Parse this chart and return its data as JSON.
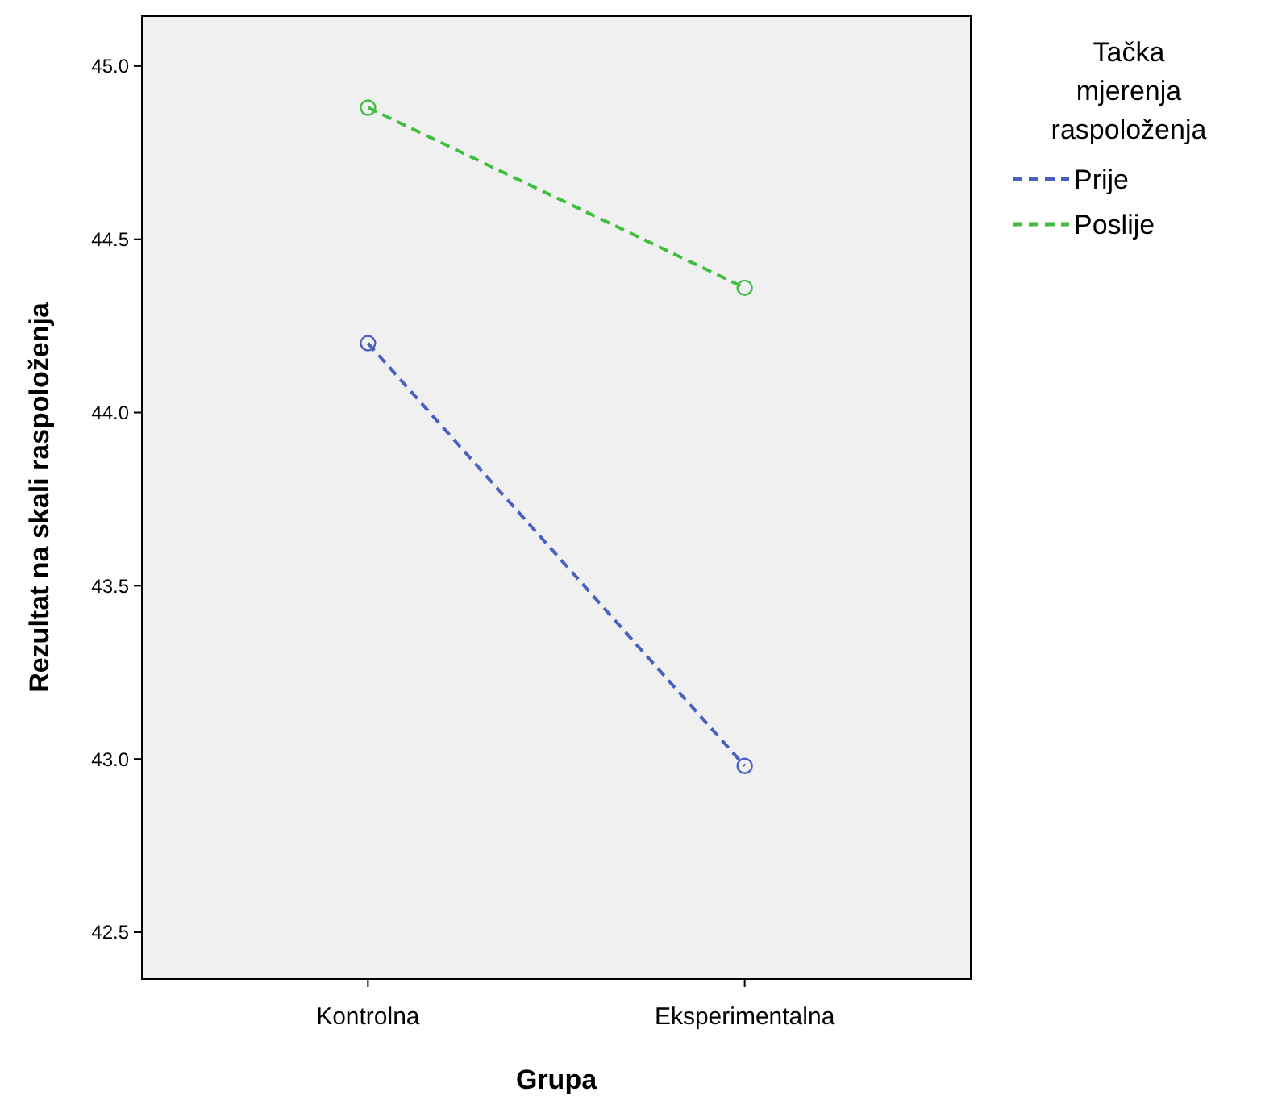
{
  "chart_data": {
    "type": "line",
    "xlabel": "Grupa",
    "ylabel": "Rezultat na skali raspoloženja",
    "legend_title": "Tačka mjerenja raspoloženja",
    "categories": [
      "Kontrolna",
      "Eksperimentalna"
    ],
    "series": [
      {
        "name": "Prije",
        "color": "#4a5fc1",
        "values": [
          44.2,
          42.98
        ]
      },
      {
        "name": "Poslije",
        "color": "#3fbf3f",
        "values": [
          44.88,
          44.36
        ]
      }
    ],
    "ylim": [
      42.365,
      45.144
    ],
    "yticks": [
      {
        "value": 42.5,
        "label": "42.5"
      },
      {
        "value": 43,
        "label": "43.0"
      },
      {
        "value": 43.5,
        "label": "43.5"
      },
      {
        "value": 44,
        "label": "44.0"
      },
      {
        "value": 44.5,
        "label": "44.5"
      },
      {
        "value": 45,
        "label": "45.0"
      }
    ],
    "grid": false,
    "legend": "right",
    "marker": "circle",
    "line_style": "dashed"
  }
}
